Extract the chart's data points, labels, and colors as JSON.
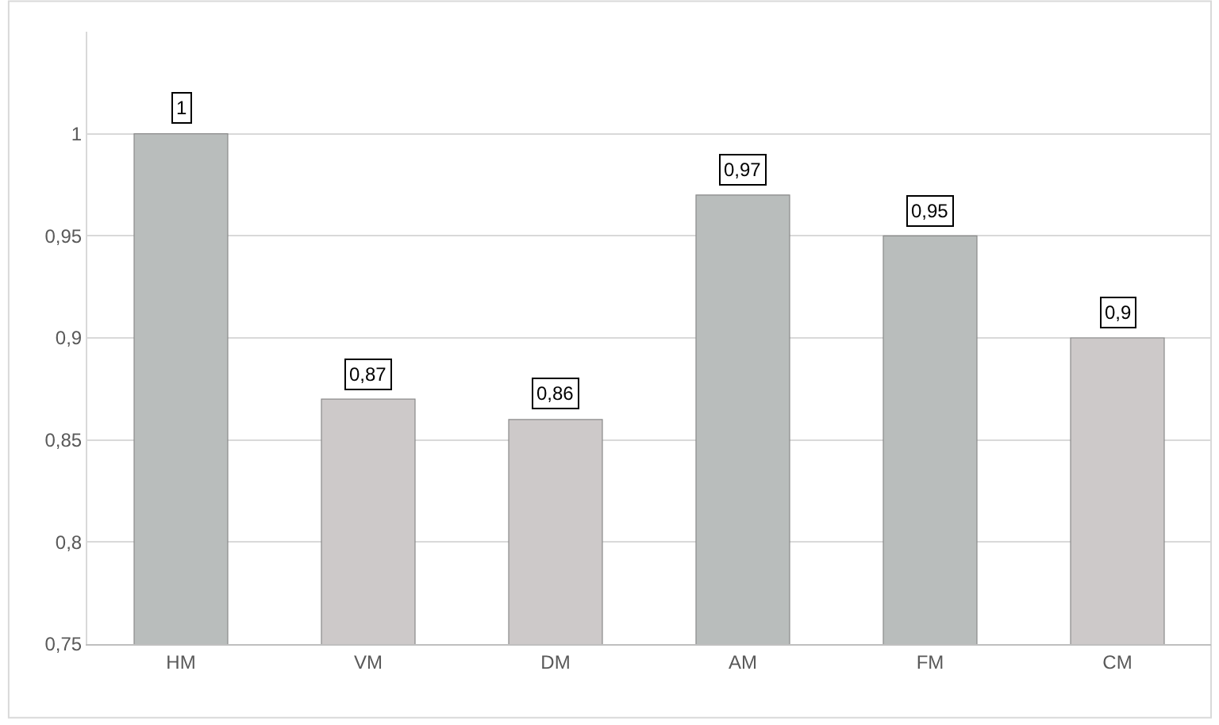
{
  "chart_data": {
    "type": "bar",
    "categories": [
      "HM",
      "VM",
      "DM",
      "AM",
      "FM",
      "CM"
    ],
    "values": [
      1,
      0.87,
      0.86,
      0.97,
      0.95,
      0.9
    ],
    "colors": [
      "#b9bdbc",
      "#cdc9c9",
      "#cdc9c9",
      "#b9bdbc",
      "#b9bdbc",
      "#cdc9c9"
    ],
    "value_labels": [
      "1",
      "0,87",
      "0,86",
      "0,97",
      "0,95",
      "0,9"
    ],
    "ylim": [
      0.75,
      1.05
    ],
    "yticks": [
      {
        "value": 0.75,
        "label": "0,75"
      },
      {
        "value": 0.8,
        "label": "0,8"
      },
      {
        "value": 0.85,
        "label": "0,85"
      },
      {
        "value": 0.9,
        "label": "0,9"
      },
      {
        "value": 0.95,
        "label": "0,95"
      },
      {
        "value": 1,
        "label": "1"
      }
    ],
    "grid": "y",
    "legend": false
  }
}
